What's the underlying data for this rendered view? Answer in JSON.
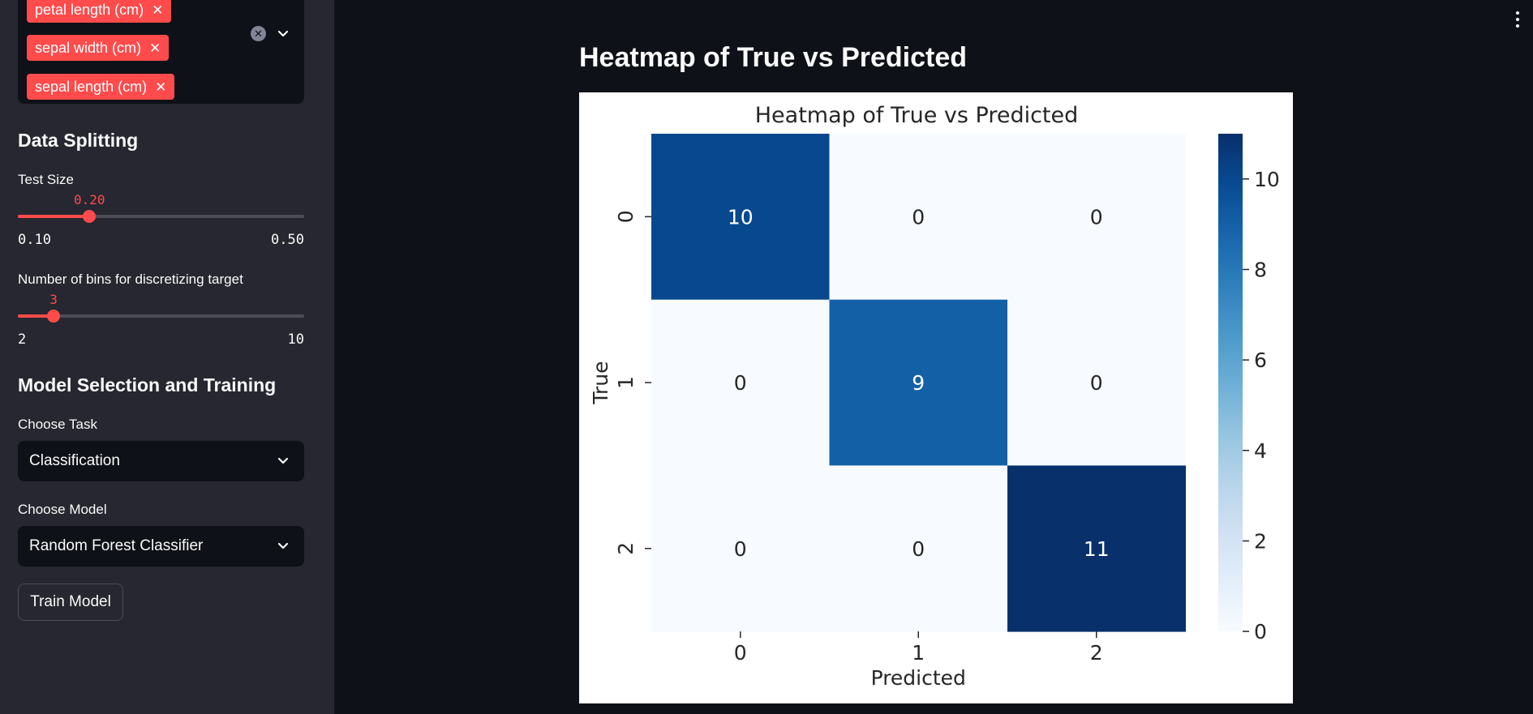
{
  "sidebar": {
    "features": {
      "tags": [
        "petal length (cm)",
        "sepal width (cm)",
        "sepal length (cm)"
      ]
    },
    "data_splitting": {
      "title": "Data Splitting",
      "test_size": {
        "label": "Test Size",
        "value": "0.20",
        "min": "0.10",
        "max": "0.50",
        "fraction": 0.25
      },
      "bins": {
        "label": "Number of bins for discretizing target",
        "value": "3",
        "min": "2",
        "max": "10",
        "fraction": 0.125
      }
    },
    "model": {
      "title": "Model Selection and Training",
      "task_label": "Choose Task",
      "task_value": "Classification",
      "model_label": "Choose Model",
      "model_value": "Random Forest Classifier",
      "train_label": "Train Model"
    }
  },
  "main": {
    "title": "Heatmap of True vs Predicted"
  },
  "colors": {
    "accent": "#ff4b4b",
    "bg": "#0e1117",
    "sidebar_bg": "#262730"
  },
  "chart_data": {
    "type": "heatmap",
    "title": "Heatmap of True vs Predicted",
    "xlabel": "Predicted",
    "ylabel": "True",
    "x_categories": [
      "0",
      "1",
      "2"
    ],
    "y_categories": [
      "0",
      "1",
      "2"
    ],
    "matrix": [
      [
        10,
        0,
        0
      ],
      [
        0,
        9,
        0
      ],
      [
        0,
        0,
        11
      ]
    ],
    "colormap": "Blues",
    "colorbar": {
      "min": 0,
      "max": 11,
      "ticks": [
        "0",
        "2",
        "4",
        "6",
        "8",
        "10"
      ]
    },
    "annotations": true
  }
}
